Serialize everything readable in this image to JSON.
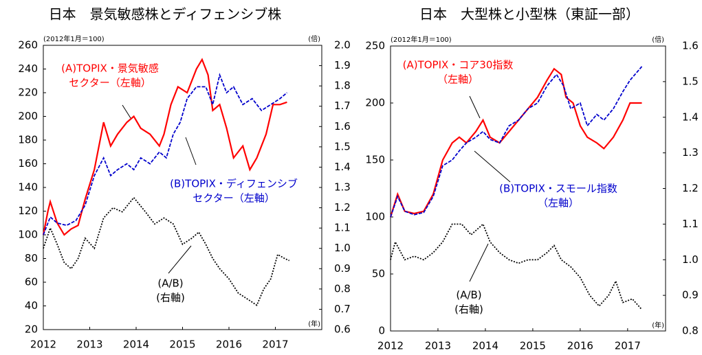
{
  "chart_data": [
    {
      "type": "line",
      "title": "日本　景気敏感株とディフェンシブ株",
      "left_unit": "(2012年1月＝100)",
      "right_unit": "(倍)",
      "x_unit": "(年)",
      "xlim": [
        2012,
        2018
      ],
      "xticks": [
        2012,
        2013,
        2014,
        2015,
        2016,
        2017
      ],
      "ylim": [
        20,
        260
      ],
      "yticks": [
        20,
        40,
        60,
        80,
        100,
        120,
        140,
        160,
        180,
        200,
        220,
        240,
        260
      ],
      "y2lim": [
        0.6,
        2.0
      ],
      "y2ticks": [
        {
          "value": 0.6,
          "label": "0.6"
        },
        {
          "value": 0.7,
          "label": "0.7"
        },
        {
          "value": 0.8,
          "label": "0.8"
        },
        {
          "value": 0.9,
          "label": "0.9"
        },
        {
          "value": 1.0,
          "label": "1.0"
        },
        {
          "value": 1.1,
          "label": "1.1"
        },
        {
          "value": 1.2,
          "label": "1.2"
        },
        {
          "value": 1.3,
          "label": "1.3"
        },
        {
          "value": 1.4,
          "label": "1.4"
        },
        {
          "value": 1.5,
          "label": "1.5"
        },
        {
          "value": 1.6,
          "label": "1.6"
        },
        {
          "value": 1.7,
          "label": "1.7"
        },
        {
          "value": 1.8,
          "label": "1.8"
        },
        {
          "value": 1.9,
          "label": "1.9"
        },
        {
          "value": 2.0,
          "label": "2.0"
        }
      ],
      "series": [
        {
          "color": "#ff0000",
          "dash": "solid",
          "axis": "y",
          "x": [
            2012,
            2012.1,
            2012.15,
            2012.3,
            2012.45,
            2012.6,
            2012.75,
            2012.9,
            2013.1,
            2013.3,
            2013.45,
            2013.6,
            2013.8,
            2013.95,
            2014.1,
            2014.3,
            2014.5,
            2014.6,
            2014.75,
            2014.9,
            2015.1,
            2015.3,
            2015.42,
            2015.55,
            2015.65,
            2015.8,
            2015.95,
            2016.1,
            2016.3,
            2016.45,
            2016.6,
            2016.8,
            2016.95,
            2017.1,
            2017.25
          ],
          "values": [
            100,
            120,
            128,
            110,
            100,
            105,
            108,
            130,
            155,
            195,
            175,
            185,
            195,
            200,
            190,
            185,
            175,
            185,
            210,
            225,
            220,
            240,
            248,
            235,
            205,
            210,
            190,
            165,
            175,
            155,
            165,
            185,
            210,
            210,
            212
          ]
        },
        {
          "color": "#0000cc",
          "dash": "dashed",
          "axis": "y",
          "x": [
            2012,
            2012.15,
            2012.3,
            2012.5,
            2012.7,
            2012.9,
            2013.1,
            2013.3,
            2013.45,
            2013.6,
            2013.8,
            2013.95,
            2014.1,
            2014.3,
            2014.5,
            2014.65,
            2014.8,
            2014.95,
            2015.1,
            2015.3,
            2015.5,
            2015.65,
            2015.8,
            2015.95,
            2016.1,
            2016.3,
            2016.5,
            2016.7,
            2016.9,
            2017.1,
            2017.25
          ],
          "values": [
            100,
            115,
            110,
            108,
            112,
            125,
            150,
            165,
            150,
            155,
            160,
            155,
            165,
            160,
            170,
            165,
            185,
            195,
            215,
            225,
            225,
            210,
            235,
            220,
            225,
            210,
            215,
            205,
            210,
            215,
            220
          ]
        },
        {
          "color": "#000000",
          "dash": "dotted",
          "axis": "y2",
          "x": [
            2012,
            2012.15,
            2012.3,
            2012.45,
            2012.6,
            2012.75,
            2012.9,
            2013.1,
            2013.3,
            2013.5,
            2013.7,
            2013.95,
            2014.2,
            2014.4,
            2014.6,
            2014.8,
            2015.0,
            2015.2,
            2015.35,
            2015.5,
            2015.65,
            2015.8,
            2016.0,
            2016.2,
            2016.4,
            2016.6,
            2016.75,
            2016.9,
            2017.05,
            2017.2,
            2017.3
          ],
          "values": [
            1.0,
            1.1,
            1.02,
            0.93,
            0.9,
            0.95,
            1.05,
            1.0,
            1.15,
            1.2,
            1.18,
            1.25,
            1.18,
            1.12,
            1.15,
            1.12,
            1.02,
            1.05,
            1.08,
            1.02,
            0.95,
            0.9,
            0.85,
            0.78,
            0.75,
            0.72,
            0.8,
            0.85,
            0.97,
            0.95,
            0.94
          ]
        }
      ],
      "annotations": [
        {
          "lines": [
            "(A)TOPIX・景気敏感",
            "セクター（左軸）"
          ],
          "color": "#ff0000"
        },
        {
          "lines": [
            "(B)TOPIX・ディフェンシブ",
            "セクター（左軸）"
          ],
          "color": "#0000cc"
        },
        {
          "lines": [
            "(A/B)",
            "(右軸)"
          ],
          "color": "#000000"
        }
      ]
    },
    {
      "type": "line",
      "title": "日本　大型株と小型株（東証一部）",
      "left_unit": "(2012年1月＝100)",
      "right_unit": "(倍)",
      "x_unit": "(年)",
      "xlim": [
        2012,
        2017.8
      ],
      "xticks": [
        2012,
        2013,
        2014,
        2015,
        2016,
        2017
      ],
      "ylim": [
        0,
        250
      ],
      "yticks": [
        0,
        50,
        100,
        150,
        200,
        250
      ],
      "y2lim": [
        0.8,
        1.6
      ],
      "y2ticks": [
        {
          "value": 0.8,
          "label": "0.8"
        },
        {
          "value": 0.9,
          "label": "0.9"
        },
        {
          "value": 1.0,
          "label": "1.0"
        },
        {
          "value": 1.1,
          "label": "1.1"
        },
        {
          "value": 1.2,
          "label": "1.2"
        },
        {
          "value": 1.3,
          "label": "1.3"
        },
        {
          "value": 1.4,
          "label": "1.4"
        },
        {
          "value": 1.5,
          "label": "1.5"
        },
        {
          "value": 1.6,
          "label": "1.6"
        }
      ],
      "series": [
        {
          "color": "#ff0000",
          "dash": "solid",
          "axis": "y",
          "x": [
            2012,
            2012.15,
            2012.3,
            2012.5,
            2012.7,
            2012.9,
            2013.1,
            2013.3,
            2013.45,
            2013.6,
            2013.8,
            2013.95,
            2014.1,
            2014.3,
            2014.5,
            2014.7,
            2014.9,
            2015.1,
            2015.3,
            2015.45,
            2015.6,
            2015.7,
            2015.85,
            2016.0,
            2016.15,
            2016.35,
            2016.5,
            2016.7,
            2016.9,
            2017.05,
            2017.3
          ],
          "values": [
            100,
            120,
            105,
            103,
            105,
            120,
            150,
            165,
            170,
            165,
            175,
            185,
            170,
            165,
            175,
            185,
            195,
            205,
            220,
            230,
            225,
            205,
            200,
            180,
            170,
            165,
            160,
            170,
            185,
            200,
            200
          ]
        },
        {
          "color": "#0000cc",
          "dash": "dashed",
          "axis": "y",
          "x": [
            2012,
            2012.15,
            2012.3,
            2012.5,
            2012.7,
            2012.9,
            2013.1,
            2013.3,
            2013.45,
            2013.6,
            2013.8,
            2013.95,
            2014.1,
            2014.3,
            2014.5,
            2014.7,
            2014.9,
            2015.1,
            2015.3,
            2015.5,
            2015.65,
            2015.8,
            2016.0,
            2016.15,
            2016.35,
            2016.5,
            2016.7,
            2016.9,
            2017.05,
            2017.3
          ],
          "values": [
            100,
            118,
            105,
            102,
            104,
            118,
            145,
            150,
            158,
            165,
            170,
            175,
            168,
            165,
            180,
            185,
            195,
            200,
            215,
            225,
            215,
            195,
            200,
            180,
            190,
            185,
            195,
            210,
            220,
            232
          ]
        },
        {
          "color": "#000000",
          "dash": "dotted",
          "axis": "y2",
          "x": [
            2012,
            2012.1,
            2012.3,
            2012.5,
            2012.7,
            2012.9,
            2013.1,
            2013.3,
            2013.5,
            2013.7,
            2013.95,
            2014.1,
            2014.3,
            2014.5,
            2014.7,
            2014.9,
            2015.1,
            2015.3,
            2015.45,
            2015.6,
            2015.8,
            2016.0,
            2016.2,
            2016.4,
            2016.6,
            2016.75,
            2016.9,
            2017.1,
            2017.3
          ],
          "values": [
            1.0,
            1.05,
            1.0,
            1.01,
            1.0,
            1.02,
            1.05,
            1.1,
            1.1,
            1.07,
            1.1,
            1.05,
            1.02,
            1.0,
            0.99,
            1.0,
            1.0,
            1.02,
            1.04,
            1.0,
            0.98,
            0.95,
            0.9,
            0.87,
            0.9,
            0.94,
            0.88,
            0.89,
            0.86
          ]
        }
      ],
      "annotations": [
        {
          "lines": [
            "(A)TOPIX・コア30指数",
            "（左軸）"
          ],
          "color": "#ff0000"
        },
        {
          "lines": [
            "(B)TOPIX・スモール指数",
            "（左軸）"
          ],
          "color": "#0000cc"
        },
        {
          "lines": [
            "(A/B)",
            "(右軸)"
          ],
          "color": "#000000"
        }
      ]
    }
  ]
}
